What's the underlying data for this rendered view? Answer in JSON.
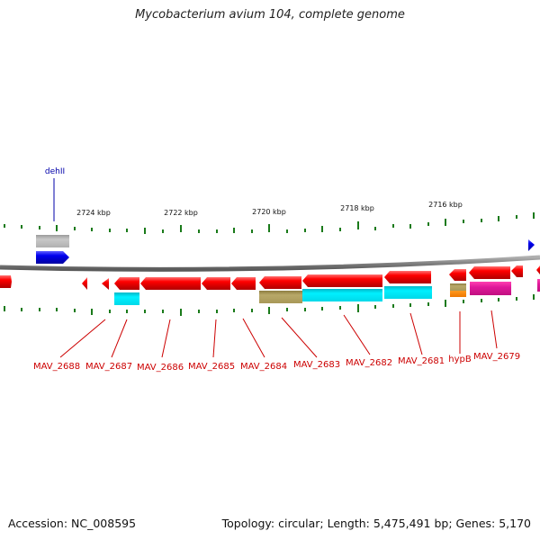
{
  "title": "Mycobacterium avium 104, complete genome",
  "footer": {
    "accession": "Accession: NC_008595",
    "summary": "Topology: circular; Length: 5,475,491 bp; Genes: 5,170"
  },
  "ruler": {
    "labels": [
      {
        "text": "2724 kbp",
        "kbp": 2724
      },
      {
        "text": "2722 kbp",
        "kbp": 2722
      },
      {
        "text": "2720 kbp",
        "kbp": 2720
      },
      {
        "text": "2718 kbp",
        "kbp": 2718
      },
      {
        "text": "2716 kbp",
        "kbp": 2716
      }
    ]
  },
  "genes": [
    {
      "name": "dehII",
      "strand": "plus",
      "color": "#0000ee",
      "label_color": "#0000aa"
    },
    {
      "name": "MAV_2688",
      "strand": "minus",
      "color": "#ee0000",
      "label_color": "#cc0000"
    },
    {
      "name": "MAV_2687",
      "strand": "minus",
      "color": "#ee0000",
      "label_color": "#cc0000"
    },
    {
      "name": "MAV_2686",
      "strand": "minus",
      "color": "#ee0000",
      "label_color": "#cc0000"
    },
    {
      "name": "MAV_2685",
      "strand": "minus",
      "color": "#ee0000",
      "label_color": "#cc0000"
    },
    {
      "name": "MAV_2684",
      "strand": "minus",
      "color": "#ee0000",
      "label_color": "#cc0000"
    },
    {
      "name": "MAV_2683",
      "strand": "minus",
      "color": "#ee0000",
      "label_color": "#cc0000"
    },
    {
      "name": "MAV_2682",
      "strand": "minus",
      "color": "#ee0000",
      "label_color": "#cc0000"
    },
    {
      "name": "MAV_2681",
      "strand": "minus",
      "color": "#ee0000",
      "label_color": "#cc0000"
    },
    {
      "name": "hypB",
      "strand": "minus",
      "color": "#ee0000",
      "label_color": "#cc0000"
    },
    {
      "name": "MAV_2679",
      "strand": "minus",
      "color": "#ee0000",
      "label_color": "#cc0000"
    }
  ],
  "feature_colors": {
    "backbone": "#808080",
    "ticks": "#1a7a1a",
    "gray_feature": "#b8b8b8",
    "cyan_feature": "#00e0f0",
    "olive_feature": "#b0a060",
    "orange_feature": "#ff8800",
    "magenta_feature": "#e0209a"
  }
}
